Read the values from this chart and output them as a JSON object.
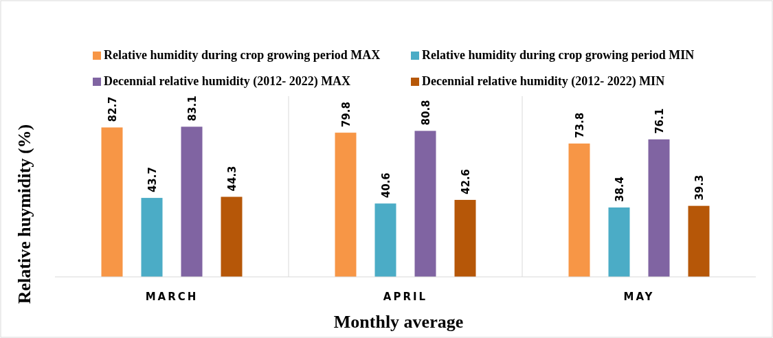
{
  "chart_data": {
    "type": "bar",
    "xlabel": "Monthly average",
    "ylabel": "Relative huymidity (%)",
    "categories": [
      "MARCH",
      "APRIL",
      "MAY"
    ],
    "series": [
      {
        "name": "Relative humidity during crop growing period MAX",
        "color": "#f79646",
        "values": [
          82.7,
          79.8,
          73.8
        ]
      },
      {
        "name": "Relative humidity during crop growing period MIN",
        "color": "#4bacc6",
        "values": [
          43.7,
          40.6,
          38.4
        ]
      },
      {
        "name": "Decennial relative humidity (2012- 2022) MAX",
        "color": "#8064a2",
        "values": [
          83.1,
          80.8,
          76.1
        ]
      },
      {
        "name": "Decennial relative humidity (2012- 2022) MIN",
        "color": "#b65708",
        "values": [
          44.3,
          42.6,
          39.3
        ]
      }
    ],
    "ylim": [
      0,
      100
    ],
    "tick_labels": "x",
    "data_labels": true,
    "grid": "x",
    "legend": "top"
  }
}
